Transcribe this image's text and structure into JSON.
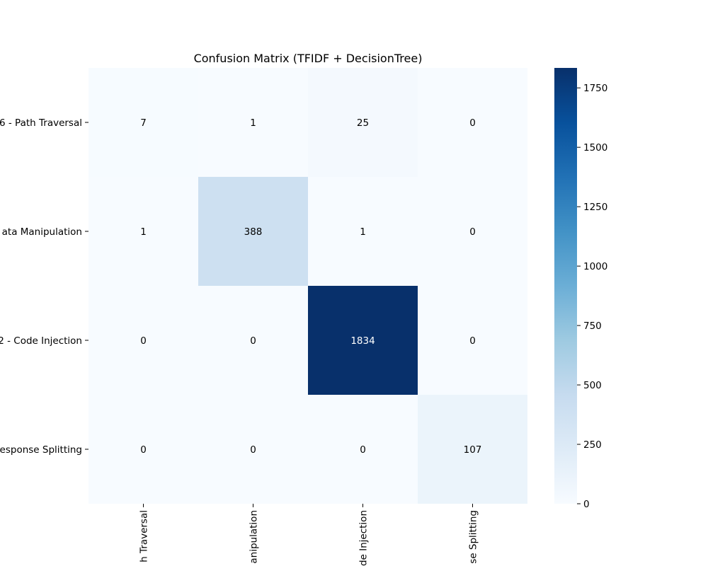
{
  "chart_data": {
    "type": "heatmap",
    "title": "Confusion Matrix (TFIDF + DecisionTree)",
    "row_labels": [
      "6 - Path Traversal",
      "ata Manipulation",
      "2 - Code Injection",
      "esponse Splitting"
    ],
    "col_labels": [
      "h Traversal",
      "anipulation",
      "de Injection",
      "se Splitting"
    ],
    "values": [
      [
        7,
        1,
        25,
        0
      ],
      [
        1,
        388,
        1,
        0
      ],
      [
        0,
        0,
        1834,
        0
      ],
      [
        0,
        0,
        0,
        107
      ]
    ],
    "value_labels": [
      [
        "7",
        "1",
        "25",
        "0"
      ],
      [
        "1",
        "388",
        "1",
        "0"
      ],
      [
        "0",
        "0",
        "1834",
        "0"
      ],
      [
        "0",
        "0",
        "0",
        "107"
      ]
    ],
    "colorbar": {
      "min": 0,
      "max": 1834,
      "ticks": [
        0,
        250,
        500,
        750,
        1000,
        1250,
        1500,
        1750
      ],
      "tick_labels": [
        "0",
        "250",
        "500",
        "750",
        "1000",
        "1250",
        "1500",
        "1750"
      ],
      "colormap": "Blues"
    },
    "grid": false,
    "legend": "right"
  }
}
